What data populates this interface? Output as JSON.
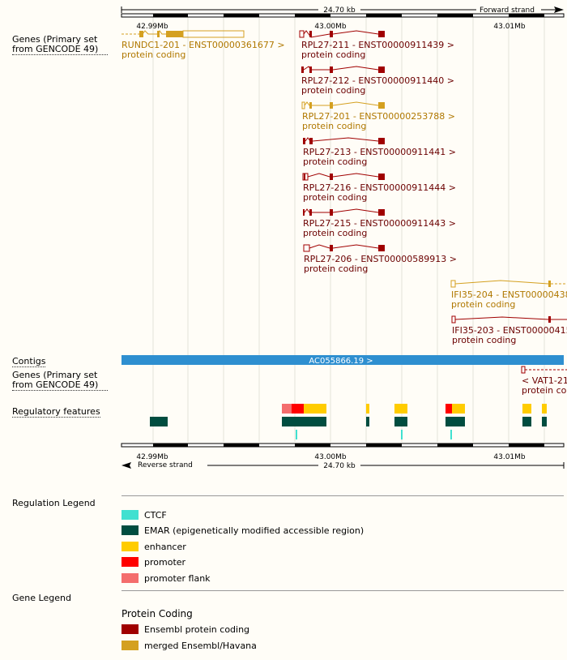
{
  "ruler_top": {
    "length": "24.70 kb",
    "strand": "Forward strand",
    "positions": [
      "42.99Mb",
      "43.00Mb",
      "43.01Mb"
    ]
  },
  "ruler_bottom": {
    "length": "24.70 kb",
    "strand": "Reverse strand",
    "positions": [
      "42.99Mb",
      "43.00Mb",
      "43.01Mb"
    ]
  },
  "tracks": {
    "genes_forward": "Genes (Primary set from GENCODE 49)",
    "contigs": "Contigs",
    "genes_reverse": "Genes (Primary set from GENCODE 49)",
    "regulatory": "Regulatory features"
  },
  "transcripts": [
    {
      "name": "RUNDC1-201 - ENST00000361677 >",
      "biotype": "protein coding",
      "type": "merged"
    },
    {
      "name": "RPL27-211 - ENST00000911439 >",
      "biotype": "protein coding",
      "type": "ensembl"
    },
    {
      "name": "RPL27-212 - ENST00000911440 >",
      "biotype": "protein coding",
      "type": "ensembl"
    },
    {
      "name": "RPL27-201 - ENST00000253788 >",
      "biotype": "protein coding",
      "type": "merged"
    },
    {
      "name": "RPL27-213 - ENST00000911441 >",
      "biotype": "protein coding",
      "type": "ensembl"
    },
    {
      "name": "RPL27-216 - ENST00000911444 >",
      "biotype": "protein coding",
      "type": "ensembl"
    },
    {
      "name": "RPL27-215 - ENST00000911443 >",
      "biotype": "protein coding",
      "type": "ensembl"
    },
    {
      "name": "RPL27-206 - ENST00000589913 >",
      "biotype": "protein coding",
      "type": "ensembl"
    },
    {
      "name": "IFI35-204 - ENST00000438",
      "biotype": "protein coding",
      "type": "merged"
    },
    {
      "name": "IFI35-203 - ENST00000415",
      "biotype": "protein coding",
      "type": "ensembl"
    }
  ],
  "contig": {
    "label": "AC055866.19 >"
  },
  "reverse_gene": {
    "name": "< VAT1-21",
    "biotype": "protein cod"
  },
  "regulation_legend": {
    "title": "Regulation Legend",
    "items": [
      {
        "label": "CTCF",
        "color": "#40e0d0"
      },
      {
        "label": "EMAR (epigenetically modified accessible region)",
        "color": "#004d40"
      },
      {
        "label": "enhancer",
        "color": "#ffcc00"
      },
      {
        "label": "promoter",
        "color": "#ff0000"
      },
      {
        "label": "promoter flank",
        "color": "#f46d6d"
      }
    ]
  },
  "gene_legend": {
    "title": "Gene Legend",
    "subtitle": "Protein Coding",
    "items": [
      {
        "label": "Ensembl protein coding",
        "color": "#a00000"
      },
      {
        "label": "merged Ensembl/Havana",
        "color": "#d4a020"
      }
    ]
  },
  "colors": {
    "ensembl": "#a00000",
    "ensembl_text": "#6b0000",
    "merged": "#d4a020",
    "merged_text": "#b07800",
    "contig": "#2e8fd0"
  }
}
